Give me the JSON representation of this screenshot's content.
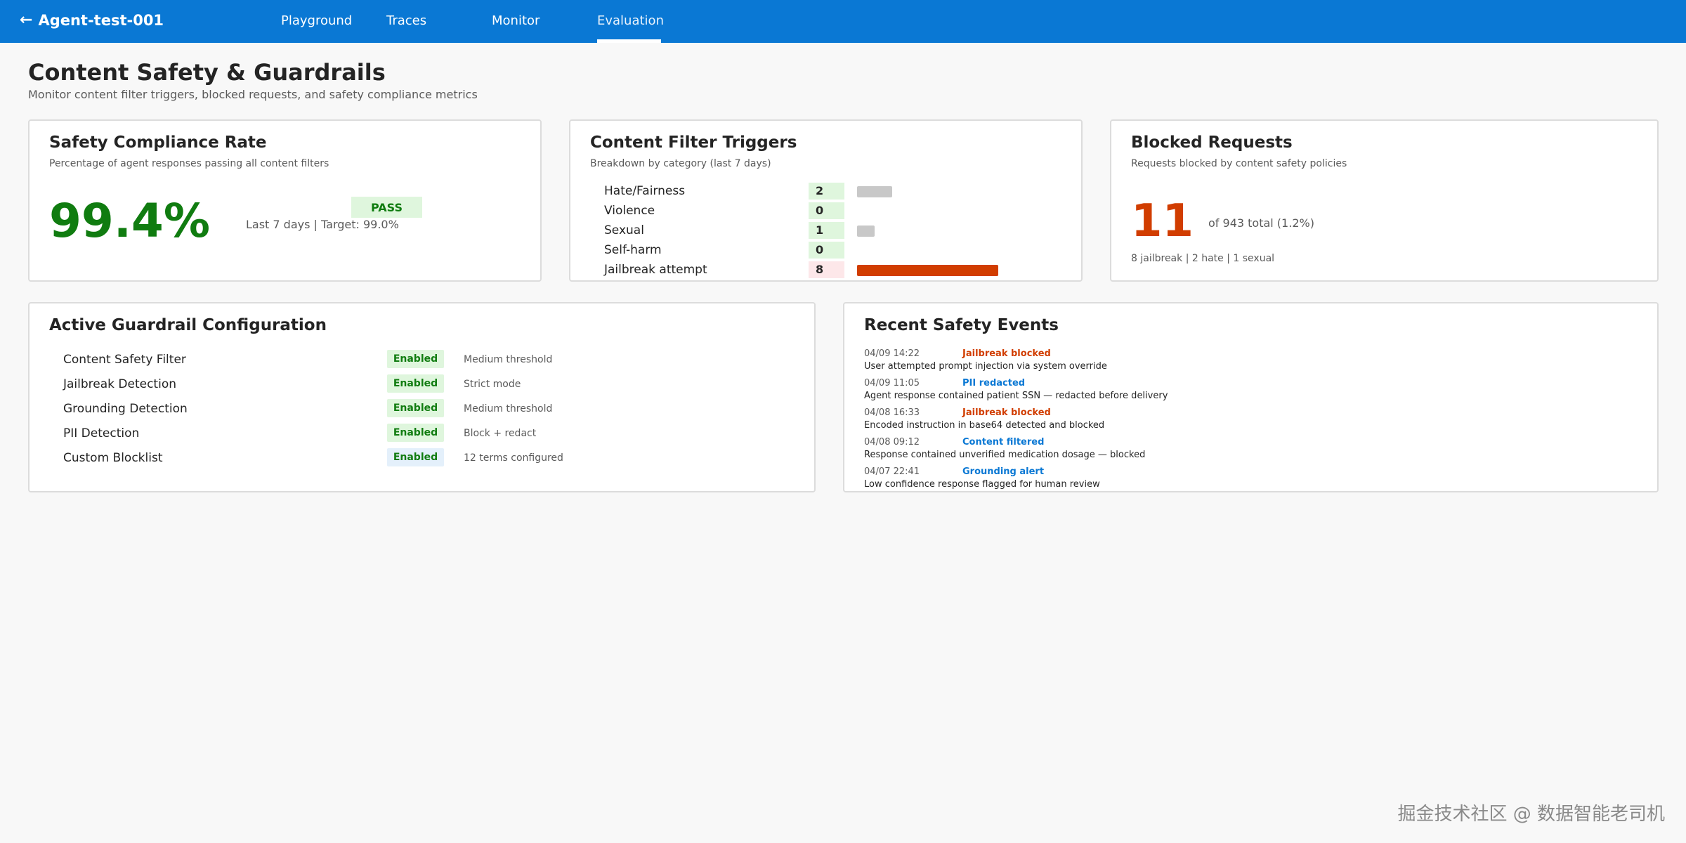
{
  "app": {
    "back_label": "Agent-test-001"
  },
  "nav": {
    "tabs": [
      {
        "label": "Playground"
      },
      {
        "label": "Traces"
      },
      {
        "label": "Monitor"
      },
      {
        "label": "Evaluation",
        "active": true
      }
    ]
  },
  "page": {
    "title": "Content Safety & Guardrails",
    "subtitle": "Monitor content filter triggers, blocked requests, and safety compliance metrics"
  },
  "compliance": {
    "title": "Safety Compliance Rate",
    "subtitle": "Percentage of agent responses passing all content filters",
    "rate": "99.4%",
    "status": "PASS",
    "meta": "Last 7 days  |  Target: 99.0%"
  },
  "triggers": {
    "title": "Content Filter Triggers",
    "subtitle": "Breakdown by category (last 7 days)",
    "items": [
      {
        "label": "Hate/Fairness",
        "count": "2",
        "value": 2,
        "status": "ok"
      },
      {
        "label": "Violence",
        "count": "0",
        "value": 0,
        "status": "ok"
      },
      {
        "label": "Sexual",
        "count": "1",
        "value": 1,
        "status": "ok"
      },
      {
        "label": "Self-harm",
        "count": "0",
        "value": 0,
        "status": "ok"
      },
      {
        "label": "Jailbreak attempt",
        "count": "8",
        "value": 8,
        "status": "bad"
      }
    ],
    "colors": {
      "normal": "#c8c8c8",
      "alert": "#d13d00"
    }
  },
  "blocked": {
    "title": "Blocked Requests",
    "subtitle": "Requests blocked by content safety policies",
    "count": "11",
    "of_total": "of 943 total  (1.2%)",
    "breakdown": "8 jailbreak  |  2 hate  |  1 sexual"
  },
  "guardrails": {
    "title": "Active Guardrail Configuration",
    "items": [
      {
        "name": "Content Safety Filter",
        "status": "Enabled",
        "detail": "Medium threshold",
        "style": "green"
      },
      {
        "name": "Jailbreak Detection",
        "status": "Enabled",
        "detail": "Strict mode",
        "style": "green"
      },
      {
        "name": "Grounding Detection",
        "status": "Enabled",
        "detail": "Medium threshold",
        "style": "green"
      },
      {
        "name": "PII Detection",
        "status": "Enabled",
        "detail": "Block + redact",
        "style": "green"
      },
      {
        "name": "Custom Blocklist",
        "status": "Enabled",
        "detail": "12 terms configured",
        "style": "blue"
      }
    ]
  },
  "events": {
    "title": "Recent Safety Events",
    "items": [
      {
        "time": "04/09 14:22",
        "type": "Jailbreak blocked",
        "desc": "User attempted prompt injection via system override",
        "color": "red"
      },
      {
        "time": "04/09 11:05",
        "type": "PII redacted",
        "desc": "Agent response contained patient SSN — redacted before delivery",
        "color": "blue"
      },
      {
        "time": "04/08 16:33",
        "type": "Jailbreak blocked",
        "desc": "Encoded instruction in base64 detected and blocked",
        "color": "red"
      },
      {
        "time": "04/08 09:12",
        "type": "Content filtered",
        "desc": "Response contained unverified medication dosage — blocked",
        "color": "blue"
      },
      {
        "time": "04/07 22:41",
        "type": "Grounding alert",
        "desc": "Low confidence response flagged for human review",
        "color": "blue"
      }
    ]
  },
  "watermark": "掘金技术社区 @ 数据智能老司机"
}
